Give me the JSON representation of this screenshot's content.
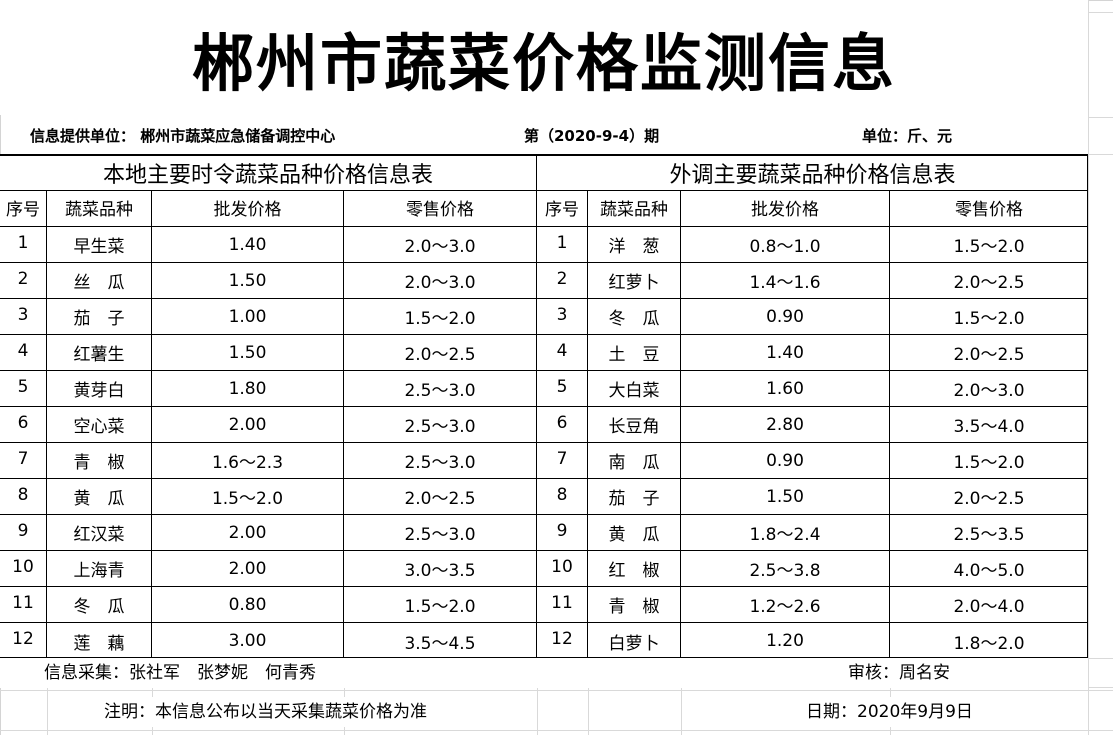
{
  "title": "郴州市蔬菜价格监测信息",
  "info": {
    "provider": "信息提供单位：  郴州市蔬菜应急储备调控中心",
    "issue": "第（2020-9-4）期",
    "unit": "单位：斤、元"
  },
  "local": {
    "title": "本地主要时令蔬菜品种价格信息表",
    "headers": [
      "序号",
      "蔬菜品种",
      "批发价格",
      "零售价格"
    ],
    "rows": [
      [
        "1",
        "早生菜",
        "1.40",
        "2.0～3.0"
      ],
      [
        "2",
        "丝　瓜",
        "1.50",
        "2.0～3.0"
      ],
      [
        "3",
        "茄　子",
        "1.00",
        "1.5～2.0"
      ],
      [
        "4",
        "红薯生",
        "1.50",
        "2.0～2.5"
      ],
      [
        "5",
        "黄芽白",
        "1.80",
        "2.5～3.0"
      ],
      [
        "6",
        "空心菜",
        "2.00",
        "2.5～3.0"
      ],
      [
        "7",
        "青　椒",
        "1.6～2.3",
        "2.5～3.0"
      ],
      [
        "8",
        "黄　瓜",
        "1.5～2.0",
        "2.0～2.5"
      ],
      [
        "9",
        "红汉菜",
        "2.00",
        "2.5～3.0"
      ],
      [
        "10",
        "上海青",
        "2.00",
        "3.0～3.5"
      ],
      [
        "11",
        "冬　瓜",
        "0.80",
        "1.5～2.0"
      ],
      [
        "12",
        "莲　藕",
        "3.00",
        "3.5～4.5"
      ]
    ]
  },
  "imported": {
    "title": "外调主要蔬菜品种价格信息表",
    "headers": [
      "序号",
      "蔬菜品种",
      "批发价格",
      "零售价格"
    ],
    "rows": [
      [
        "1",
        "洋　葱",
        "0.8～1.0",
        "1.5～2.0"
      ],
      [
        "2",
        "红萝卜",
        "1.4～1.6",
        "2.0～2.5"
      ],
      [
        "3",
        "冬　瓜",
        "0.90",
        "1.5～2.0"
      ],
      [
        "4",
        "土　豆",
        "1.40",
        "2.0～2.5"
      ],
      [
        "5",
        "大白菜",
        "1.60",
        "2.0～3.0"
      ],
      [
        "6",
        "长豆角",
        "2.80",
        "3.5～4.0"
      ],
      [
        "7",
        "南　瓜",
        "0.90",
        "1.5～2.0"
      ],
      [
        "8",
        "茄　子",
        "1.50",
        "2.0～2.5"
      ],
      [
        "9",
        "黄　瓜",
        "1.8～2.4",
        "2.5～3.5"
      ],
      [
        "10",
        "红　椒",
        "2.5～3.8",
        "4.0～5.0"
      ],
      [
        "11",
        "青　椒",
        "1.2～2.6",
        "2.0～4.0"
      ],
      [
        "12",
        "白萝卜",
        "1.20",
        "1.8～2.0"
      ]
    ]
  },
  "footer": {
    "collectors": "信息采集：张社军　张梦妮　何青秀",
    "reviewer": "审核：周名安",
    "note": "注明：本信息公布以当天采集蔬菜价格为准",
    "date": "日期：2020年9月9日"
  }
}
